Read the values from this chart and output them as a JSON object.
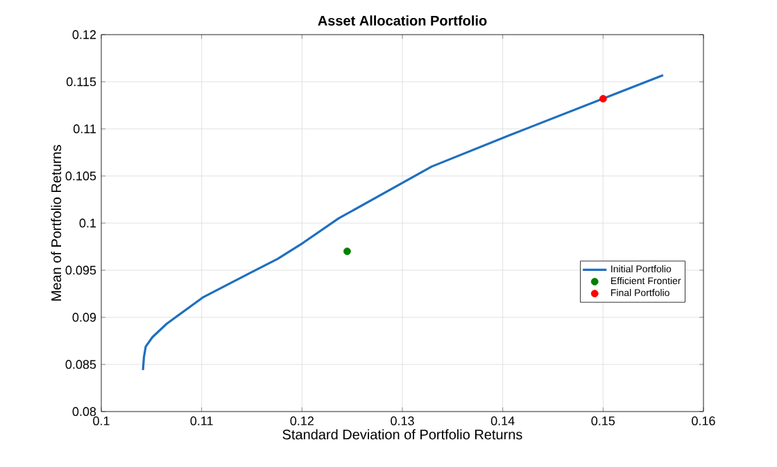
{
  "chart_data": {
    "type": "line",
    "title": "Asset  Allocation  Portfolio",
    "xlabel": "Standard Deviation of Portfolio Returns",
    "ylabel": "Mean of Portfolio Returns",
    "xlim": [
      0.1,
      0.16
    ],
    "ylim": [
      0.08,
      0.12
    ],
    "xticks": [
      0.1,
      0.11,
      0.12,
      0.13,
      0.14,
      0.15,
      0.16
    ],
    "yticks": [
      0.08,
      0.085,
      0.09,
      0.095,
      0.1,
      0.105,
      0.11,
      0.115,
      0.12
    ],
    "grid": true,
    "legend": "right",
    "series": [
      {
        "name": "Initial Portfolio",
        "type": "line",
        "color": "#1f6fc0",
        "marker": "none",
        "x": [
          0.10415,
          0.10425,
          0.10443,
          0.1051,
          0.1065,
          0.1101,
          0.1148,
          0.11757,
          0.1201,
          0.12365,
          0.13292,
          0.14062,
          0.14997,
          0.15598
        ],
        "values": [
          0.0844,
          0.0858,
          0.0869,
          0.0879,
          0.0893,
          0.0921,
          0.0947,
          0.0962,
          0.0979,
          0.1005,
          0.106,
          0.1093,
          0.1132,
          0.1157
        ]
      },
      {
        "name": "Efficient Frontier",
        "type": "scatter",
        "color": "#008000",
        "marker": "circle",
        "x": [
          0.1245
        ],
        "values": [
          0.097
        ]
      },
      {
        "name": "Final Portfolio",
        "type": "scatter",
        "color": "#ff0000",
        "marker": "circle",
        "x": [
          0.15
        ],
        "values": [
          0.1132
        ]
      }
    ]
  }
}
